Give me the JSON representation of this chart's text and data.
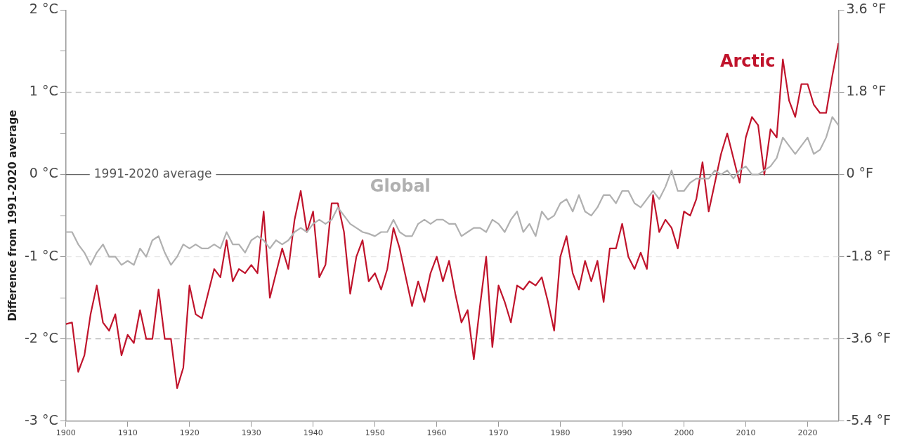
{
  "chart_data": {
    "type": "line",
    "ylabel": "Difference from 1991-2020 average",
    "xlim": [
      1900,
      2025
    ],
    "xticks": [
      1900,
      1910,
      1920,
      1930,
      1940,
      1950,
      1960,
      1970,
      1980,
      1990,
      2000,
      2010,
      2020
    ],
    "ylim": [
      -3,
      2
    ],
    "yticks": [
      {
        "value": -3,
        "label": "-3 °C"
      },
      {
        "value": -2.5,
        "label": null
      },
      {
        "value": -2,
        "label": "-2 °C"
      },
      {
        "value": -1.5,
        "label": null
      },
      {
        "value": -1,
        "label": "-1 °C"
      },
      {
        "value": -0.5,
        "label": null
      },
      {
        "value": 0,
        "label": "0 °C"
      },
      {
        "value": 0.5,
        "label": null
      },
      {
        "value": 1,
        "label": "1 °C"
      },
      {
        "value": 1.5,
        "label": null
      },
      {
        "value": 2,
        "label": "2 °C"
      }
    ],
    "y2lim": [
      -5.4,
      3.6
    ],
    "y2ticks": [
      {
        "value": -5.4,
        "label": "-5.4 °F"
      },
      {
        "value": -3.6,
        "label": "-3.6 °F"
      },
      {
        "value": -1.8,
        "label": "-1.8 °F"
      },
      {
        "value": 0,
        "label": "0 °F"
      },
      {
        "value": 1.8,
        "label": "1.8 °F"
      },
      {
        "value": 3.6,
        "label": "3.6 °F"
      }
    ],
    "grid": false,
    "legend": false,
    "marker": "none",
    "line_style": "solid",
    "ref_lines": [
      {
        "axis": "y",
        "value": 0,
        "label": "1991-2020 average",
        "color": "#666666",
        "line_style": "solid"
      },
      {
        "axis": "y",
        "value": 1,
        "label": null,
        "color": "#c8c8c8",
        "line_style": "dashed"
      },
      {
        "axis": "y",
        "value": -1,
        "label": null,
        "color": "#e6e6e6",
        "line_style": "dashed"
      },
      {
        "axis": "y",
        "value": -2,
        "label": null,
        "color": "#b4b4b4",
        "line_style": "dashed"
      }
    ],
    "series": [
      {
        "name": "Global",
        "color": "#b0b0b0",
        "x": [
          1900,
          1901,
          1902,
          1903,
          1904,
          1905,
          1906,
          1907,
          1908,
          1909,
          1910,
          1911,
          1912,
          1913,
          1914,
          1915,
          1916,
          1917,
          1918,
          1919,
          1920,
          1921,
          1922,
          1923,
          1924,
          1925,
          1926,
          1927,
          1928,
          1929,
          1930,
          1931,
          1932,
          1933,
          1934,
          1935,
          1936,
          1937,
          1938,
          1939,
          1940,
          1941,
          1942,
          1943,
          1944,
          1945,
          1946,
          1947,
          1948,
          1949,
          1950,
          1951,
          1952,
          1953,
          1954,
          1955,
          1956,
          1957,
          1958,
          1959,
          1960,
          1961,
          1962,
          1963,
          1964,
          1965,
          1966,
          1967,
          1968,
          1969,
          1970,
          1971,
          1972,
          1973,
          1974,
          1975,
          1976,
          1977,
          1978,
          1979,
          1980,
          1981,
          1982,
          1983,
          1984,
          1985,
          1986,
          1987,
          1988,
          1989,
          1990,
          1991,
          1992,
          1993,
          1994,
          1995,
          1996,
          1997,
          1998,
          1999,
          2000,
          2001,
          2002,
          2003,
          2004,
          2005,
          2006,
          2007,
          2008,
          2009,
          2010,
          2011,
          2012,
          2013,
          2014,
          2015,
          2016,
          2017,
          2018,
          2019,
          2020,
          2021,
          2022,
          2023,
          2024,
          2025
        ],
        "values": [
          -0.7,
          -0.7,
          -0.85,
          -0.95,
          -1.1,
          -0.95,
          -0.85,
          -1.0,
          -1.0,
          -1.1,
          -1.05,
          -1.1,
          -0.9,
          -1.0,
          -0.8,
          -0.75,
          -0.95,
          -1.1,
          -1.0,
          -0.85,
          -0.9,
          -0.85,
          -0.9,
          -0.9,
          -0.85,
          -0.9,
          -0.7,
          -0.85,
          -0.85,
          -0.95,
          -0.8,
          -0.75,
          -0.8,
          -0.9,
          -0.8,
          -0.85,
          -0.8,
          -0.7,
          -0.65,
          -0.7,
          -0.6,
          -0.55,
          -0.6,
          -0.55,
          -0.4,
          -0.5,
          -0.6,
          -0.65,
          -0.7,
          -0.72,
          -0.75,
          -0.7,
          -0.7,
          -0.55,
          -0.7,
          -0.75,
          -0.75,
          -0.6,
          -0.55,
          -0.6,
          -0.55,
          -0.55,
          -0.6,
          -0.6,
          -0.75,
          -0.7,
          -0.65,
          -0.65,
          -0.7,
          -0.55,
          -0.6,
          -0.7,
          -0.55,
          -0.45,
          -0.7,
          -0.6,
          -0.75,
          -0.45,
          -0.55,
          -0.5,
          -0.35,
          -0.3,
          -0.45,
          -0.25,
          -0.45,
          -0.5,
          -0.4,
          -0.25,
          -0.25,
          -0.35,
          -0.2,
          -0.2,
          -0.35,
          -0.4,
          -0.3,
          -0.2,
          -0.3,
          -0.15,
          0.05,
          -0.2,
          -0.2,
          -0.1,
          -0.05,
          -0.05,
          -0.05,
          0.05,
          0.0,
          0.05,
          -0.05,
          0.05,
          0.1,
          0.0,
          0.0,
          0.05,
          0.1,
          0.2,
          0.45,
          0.35,
          0.25,
          0.35,
          0.45,
          0.25,
          0.3,
          0.45,
          0.7,
          0.6
        ]
      },
      {
        "name": "Arctic",
        "color": "#c0142c",
        "x": [
          1900,
          1901,
          1902,
          1903,
          1904,
          1905,
          1906,
          1907,
          1908,
          1909,
          1910,
          1911,
          1912,
          1913,
          1914,
          1915,
          1916,
          1917,
          1918,
          1919,
          1920,
          1921,
          1922,
          1923,
          1924,
          1925,
          1926,
          1927,
          1928,
          1929,
          1930,
          1931,
          1932,
          1933,
          1934,
          1935,
          1936,
          1937,
          1938,
          1939,
          1940,
          1941,
          1942,
          1943,
          1944,
          1945,
          1946,
          1947,
          1948,
          1949,
          1950,
          1951,
          1952,
          1953,
          1954,
          1955,
          1956,
          1957,
          1958,
          1959,
          1960,
          1961,
          1962,
          1963,
          1964,
          1965,
          1966,
          1967,
          1968,
          1969,
          1970,
          1971,
          1972,
          1973,
          1974,
          1975,
          1976,
          1977,
          1978,
          1979,
          1980,
          1981,
          1982,
          1983,
          1984,
          1985,
          1986,
          1987,
          1988,
          1989,
          1990,
          1991,
          1992,
          1993,
          1994,
          1995,
          1996,
          1997,
          1998,
          1999,
          2000,
          2001,
          2002,
          2003,
          2004,
          2005,
          2006,
          2007,
          2008,
          2009,
          2010,
          2011,
          2012,
          2013,
          2014,
          2015,
          2016,
          2017,
          2018,
          2019,
          2020,
          2021,
          2022,
          2023,
          2024,
          2025
        ],
        "values": [
          -1.82,
          -1.8,
          -2.4,
          -2.2,
          -1.7,
          -1.35,
          -1.8,
          -1.9,
          -1.7,
          -2.2,
          -1.95,
          -2.05,
          -1.65,
          -2.0,
          -2.0,
          -1.4,
          -2.0,
          -2.0,
          -2.6,
          -2.35,
          -1.35,
          -1.7,
          -1.75,
          -1.45,
          -1.15,
          -1.25,
          -0.8,
          -1.3,
          -1.15,
          -1.2,
          -1.1,
          -1.2,
          -0.45,
          -1.5,
          -1.2,
          -0.9,
          -1.15,
          -0.55,
          -0.2,
          -0.7,
          -0.45,
          -1.25,
          -1.1,
          -0.35,
          -0.35,
          -0.7,
          -1.45,
          -1.0,
          -0.8,
          -1.3,
          -1.2,
          -1.4,
          -1.15,
          -0.65,
          -0.9,
          -1.25,
          -1.6,
          -1.3,
          -1.55,
          -1.2,
          -1.0,
          -1.3,
          -1.05,
          -1.45,
          -1.8,
          -1.65,
          -2.25,
          -1.6,
          -1.0,
          -2.1,
          -1.35,
          -1.55,
          -1.8,
          -1.35,
          -1.4,
          -1.3,
          -1.35,
          -1.25,
          -1.55,
          -1.9,
          -1.0,
          -0.75,
          -1.2,
          -1.4,
          -1.05,
          -1.3,
          -1.05,
          -1.55,
          -0.9,
          -0.9,
          -0.6,
          -1.0,
          -1.15,
          -0.95,
          -1.15,
          -0.25,
          -0.7,
          -0.55,
          -0.65,
          -0.9,
          -0.45,
          -0.5,
          -0.3,
          0.15,
          -0.45,
          -0.1,
          0.25,
          0.5,
          0.2,
          -0.1,
          0.45,
          0.7,
          0.6,
          0.0,
          0.55,
          0.45,
          1.4,
          0.9,
          0.7,
          1.1,
          1.1,
          0.85,
          0.75,
          0.75,
          1.2,
          1.6
        ]
      }
    ]
  }
}
